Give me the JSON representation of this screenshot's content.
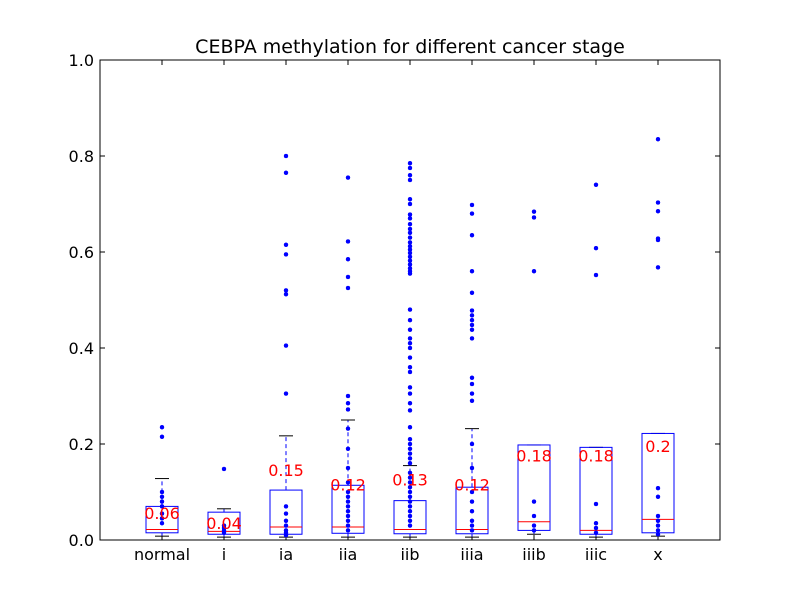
{
  "chart_data": {
    "type": "box",
    "title": "CEBPA methylation for different cancer stage",
    "xlabel": "",
    "ylabel": "",
    "ylim": [
      0,
      1.0
    ],
    "yticks": [
      "0.0",
      "0.2",
      "0.4",
      "0.6",
      "0.8",
      "1.0"
    ],
    "grid": false,
    "colors": {
      "box": "#0000ff",
      "median": "#ff0000",
      "whisker": "#0000ff",
      "cap": "#000000",
      "flier": "#0000ff",
      "label": "#ff0000"
    },
    "categories": [
      "normal",
      "i",
      "ia",
      "iia",
      "iib",
      "iiia",
      "iiib",
      "iiic",
      "x"
    ],
    "boxes": [
      {
        "name": "normal",
        "q1": 0.015,
        "median": 0.022,
        "q3": 0.07,
        "whisker_low": 0.008,
        "whisker_high": 0.128,
        "median_label": "0.06",
        "fliers": [
          0.235,
          0.215,
          0.1,
          0.09,
          0.08,
          0.07,
          0.055,
          0.045,
          0.035
        ]
      },
      {
        "name": "i",
        "q1": 0.012,
        "median": 0.018,
        "q3": 0.058,
        "whisker_low": 0.006,
        "whisker_high": 0.065,
        "median_label": "0.04",
        "fliers": [
          0.148,
          0.03,
          0.025,
          0.02,
          0.015
        ]
      },
      {
        "name": "ia",
        "q1": 0.012,
        "median": 0.027,
        "q3": 0.104,
        "whisker_low": 0.006,
        "whisker_high": 0.217,
        "median_label": "0.15",
        "fliers": [
          0.8,
          0.765,
          0.615,
          0.595,
          0.52,
          0.512,
          0.405,
          0.305,
          0.07,
          0.055,
          0.04,
          0.03,
          0.02,
          0.015,
          0.012,
          0.01
        ]
      },
      {
        "name": "iia",
        "q1": 0.014,
        "median": 0.027,
        "q3": 0.114,
        "whisker_low": 0.006,
        "whisker_high": 0.25,
        "median_label": "0.12",
        "fliers": [
          0.755,
          0.622,
          0.585,
          0.548,
          0.525,
          0.3,
          0.285,
          0.272,
          0.232,
          0.19,
          0.15,
          0.12,
          0.1,
          0.09,
          0.08,
          0.07,
          0.06,
          0.05,
          0.04,
          0.03,
          0.02
        ]
      },
      {
        "name": "iib",
        "q1": 0.013,
        "median": 0.022,
        "q3": 0.082,
        "whisker_low": 0.006,
        "whisker_high": 0.155,
        "median_label": "0.13",
        "fliers": [
          0.785,
          0.775,
          0.76,
          0.75,
          0.71,
          0.7,
          0.678,
          0.67,
          0.658,
          0.648,
          0.64,
          0.63,
          0.62,
          0.612,
          0.605,
          0.598,
          0.59,
          0.582,
          0.574,
          0.566,
          0.56,
          0.555,
          0.48,
          0.458,
          0.438,
          0.42,
          0.41,
          0.4,
          0.38,
          0.36,
          0.35,
          0.318,
          0.305,
          0.285,
          0.27,
          0.235,
          0.21,
          0.2,
          0.19,
          0.18,
          0.17,
          0.16,
          0.14,
          0.13,
          0.12,
          0.11,
          0.1,
          0.09,
          0.08,
          0.07,
          0.06,
          0.05,
          0.04,
          0.03
        ]
      },
      {
        "name": "iiia",
        "q1": 0.013,
        "median": 0.022,
        "q3": 0.11,
        "whisker_low": 0.006,
        "whisker_high": 0.232,
        "median_label": "0.12",
        "fliers": [
          0.698,
          0.68,
          0.635,
          0.56,
          0.515,
          0.478,
          0.468,
          0.458,
          0.448,
          0.438,
          0.42,
          0.338,
          0.325,
          0.305,
          0.29,
          0.2,
          0.15,
          0.1,
          0.08,
          0.06,
          0.04,
          0.03,
          0.02
        ]
      },
      {
        "name": "iiib",
        "q1": 0.02,
        "median": 0.038,
        "q3": 0.198,
        "whisker_low": 0.012,
        "whisker_high": 0.198,
        "median_label": "0.18",
        "fliers": [
          0.684,
          0.672,
          0.56,
          0.08,
          0.05,
          0.03,
          0.02
        ]
      },
      {
        "name": "iiic",
        "q1": 0.012,
        "median": 0.02,
        "q3": 0.193,
        "whisker_low": 0.006,
        "whisker_high": 0.193,
        "median_label": "0.18",
        "fliers": [
          0.74,
          0.608,
          0.552,
          0.075,
          0.035,
          0.025,
          0.015
        ]
      },
      {
        "name": "x",
        "q1": 0.015,
        "median": 0.043,
        "q3": 0.222,
        "whisker_low": 0.008,
        "whisker_high": 0.222,
        "median_label": "0.2",
        "fliers": [
          0.835,
          0.703,
          0.685,
          0.628,
          0.625,
          0.568,
          0.108,
          0.09,
          0.05,
          0.04,
          0.03,
          0.02,
          0.012
        ]
      }
    ]
  }
}
